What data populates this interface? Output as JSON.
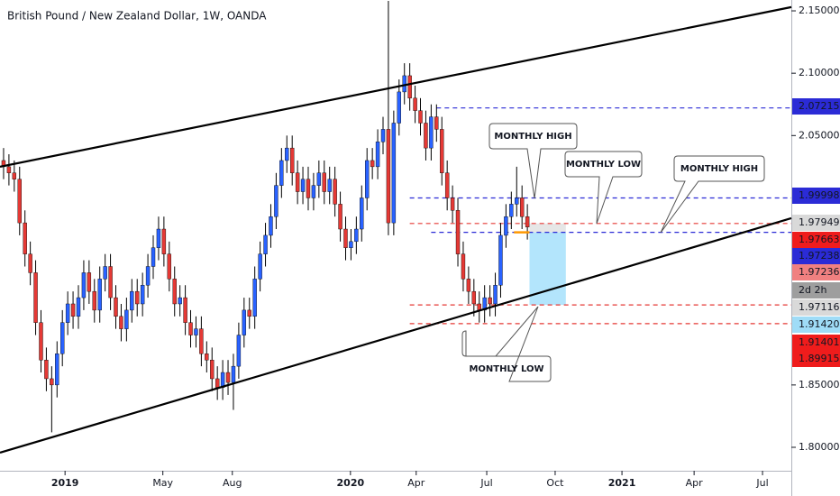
{
  "chart_data": {
    "type": "candlestick",
    "title": "British Pound / New Zealand Dollar, 1W, OANDA",
    "ylim": [
      1.7812,
      2.1587
    ],
    "xlim": [
      -0.67,
      147.39
    ],
    "yticks": [
      {
        "value": 2.15,
        "label": "2.15000"
      },
      {
        "value": 2.1,
        "label": "2.10000"
      },
      {
        "value": 2.05,
        "label": "2.05000"
      },
      {
        "value": 1.85,
        "label": "1.85000"
      },
      {
        "value": 1.8,
        "label": "1.80000"
      }
    ],
    "xticks": [
      {
        "value": 11.5,
        "label": "2019"
      },
      {
        "value": 29.8,
        "label": "May"
      },
      {
        "value": 42.8,
        "label": "Aug"
      },
      {
        "value": 64.9,
        "label": "2020"
      },
      {
        "value": 77.2,
        "label": "Apr"
      },
      {
        "value": 90.4,
        "label": "Jul"
      },
      {
        "value": 103.2,
        "label": "Oct"
      },
      {
        "value": 115.7,
        "label": "2021"
      },
      {
        "value": 129.2,
        "label": "Apr"
      },
      {
        "value": 142,
        "label": "Jul"
      }
    ],
    "series": [
      {
        "up_color": "#2962ff",
        "down_color": "#e53935",
        "wick_color": "#000000",
        "ohlc": [
          [
            2.03,
            2.04,
            2.015,
            2.025
          ],
          [
            2.025,
            2.035,
            2.01,
            2.02
          ],
          [
            2.02,
            2.03,
            2.005,
            2.015
          ],
          [
            2.015,
            2.025,
            1.97,
            1.98
          ],
          [
            1.98,
            1.99,
            1.945,
            1.955
          ],
          [
            1.955,
            1.965,
            1.93,
            1.94
          ],
          [
            1.94,
            1.95,
            1.89,
            1.9
          ],
          [
            1.9,
            1.91,
            1.86,
            1.87
          ],
          [
            1.87,
            1.88,
            1.845,
            1.855
          ],
          [
            1.855,
            1.865,
            1.812,
            1.85
          ],
          [
            1.85,
            1.885,
            1.84,
            1.875
          ],
          [
            1.875,
            1.91,
            1.865,
            1.9
          ],
          [
            1.9,
            1.925,
            1.89,
            1.915
          ],
          [
            1.915,
            1.925,
            1.895,
            1.905
          ],
          [
            1.905,
            1.93,
            1.895,
            1.92
          ],
          [
            1.92,
            1.95,
            1.91,
            1.94
          ],
          [
            1.94,
            1.95,
            1.915,
            1.925
          ],
          [
            1.925,
            1.935,
            1.9,
            1.91
          ],
          [
            1.91,
            1.945,
            1.9,
            1.935
          ],
          [
            1.935,
            1.955,
            1.925,
            1.945
          ],
          [
            1.945,
            1.955,
            1.91,
            1.92
          ],
          [
            1.92,
            1.93,
            1.895,
            1.905
          ],
          [
            1.905,
            1.915,
            1.885,
            1.895
          ],
          [
            1.895,
            1.92,
            1.885,
            1.91
          ],
          [
            1.91,
            1.935,
            1.9,
            1.925
          ],
          [
            1.925,
            1.935,
            1.905,
            1.915
          ],
          [
            1.915,
            1.94,
            1.905,
            1.93
          ],
          [
            1.93,
            1.955,
            1.92,
            1.945
          ],
          [
            1.945,
            1.97,
            1.935,
            1.96
          ],
          [
            1.96,
            1.985,
            1.95,
            1.975
          ],
          [
            1.975,
            1.985,
            1.945,
            1.955
          ],
          [
            1.955,
            1.965,
            1.925,
            1.935
          ],
          [
            1.935,
            1.945,
            1.905,
            1.915
          ],
          [
            1.915,
            1.93,
            1.905,
            1.92
          ],
          [
            1.92,
            1.93,
            1.89,
            1.9
          ],
          [
            1.9,
            1.91,
            1.88,
            1.89
          ],
          [
            1.89,
            1.905,
            1.88,
            1.895
          ],
          [
            1.895,
            1.905,
            1.865,
            1.875
          ],
          [
            1.875,
            1.885,
            1.86,
            1.87
          ],
          [
            1.87,
            1.88,
            1.845,
            1.855
          ],
          [
            1.855,
            1.865,
            1.838,
            1.848
          ],
          [
            1.848,
            1.87,
            1.838,
            1.86
          ],
          [
            1.86,
            1.87,
            1.842,
            1.852
          ],
          [
            1.852,
            1.875,
            1.83,
            1.865
          ],
          [
            1.865,
            1.9,
            1.855,
            1.89
          ],
          [
            1.89,
            1.92,
            1.88,
            1.91
          ],
          [
            1.91,
            1.92,
            1.895,
            1.905
          ],
          [
            1.905,
            1.945,
            1.895,
            1.935
          ],
          [
            1.935,
            1.965,
            1.925,
            1.955
          ],
          [
            1.955,
            1.98,
            1.945,
            1.97
          ],
          [
            1.97,
            1.995,
            1.96,
            1.985
          ],
          [
            1.985,
            2.02,
            1.975,
            2.01
          ],
          [
            2.01,
            2.04,
            2.0,
            2.03
          ],
          [
            2.03,
            2.05,
            2.02,
            2.04
          ],
          [
            2.04,
            2.05,
            2.01,
            2.02
          ],
          [
            2.02,
            2.03,
            1.995,
            2.005
          ],
          [
            2.005,
            2.025,
            1.995,
            2.015
          ],
          [
            2.015,
            2.025,
            1.99,
            2.0
          ],
          [
            2.0,
            2.02,
            1.99,
            2.01
          ],
          [
            2.01,
            2.03,
            2.0,
            2.02
          ],
          [
            2.02,
            2.03,
            1.995,
            2.005
          ],
          [
            2.005,
            2.025,
            1.995,
            2.015
          ],
          [
            2.015,
            2.025,
            1.985,
            1.995
          ],
          [
            1.995,
            2.005,
            1.965,
            1.975
          ],
          [
            1.975,
            1.985,
            1.95,
            1.96
          ],
          [
            1.96,
            1.975,
            1.95,
            1.965
          ],
          [
            1.965,
            1.985,
            1.955,
            1.975
          ],
          [
            1.975,
            2.01,
            1.965,
            2.0
          ],
          [
            2.0,
            2.04,
            1.99,
            2.03
          ],
          [
            2.03,
            2.04,
            2.015,
            2.025
          ],
          [
            2.025,
            2.055,
            2.015,
            2.045
          ],
          [
            2.045,
            2.065,
            2.035,
            2.055
          ],
          [
            2.055,
            2.158,
            1.97,
            1.98
          ],
          [
            1.98,
            2.07,
            1.97,
            2.06
          ],
          [
            2.06,
            2.095,
            2.05,
            2.085
          ],
          [
            2.085,
            2.108,
            2.075,
            2.098
          ],
          [
            2.098,
            2.108,
            2.07,
            2.08
          ],
          [
            2.08,
            2.09,
            2.06,
            2.07
          ],
          [
            2.07,
            2.08,
            2.05,
            2.06
          ],
          [
            2.06,
            2.07,
            2.03,
            2.04
          ],
          [
            2.04,
            2.075,
            2.03,
            2.065
          ],
          [
            2.065,
            2.075,
            2.045,
            2.055
          ],
          [
            2.055,
            2.065,
            2.01,
            2.02
          ],
          [
            2.02,
            2.03,
            1.99,
            2.0
          ],
          [
            2.0,
            2.01,
            1.98,
            1.99
          ],
          [
            1.99,
            2.0,
            1.945,
            1.955
          ],
          [
            1.955,
            1.965,
            1.925,
            1.935
          ],
          [
            1.935,
            1.945,
            1.915,
            1.925
          ],
          [
            1.925,
            1.935,
            1.905,
            1.915
          ],
          [
            1.915,
            1.925,
            1.9,
            1.91
          ],
          [
            1.91,
            1.93,
            1.9,
            1.92
          ],
          [
            1.92,
            1.93,
            1.905,
            1.915
          ],
          [
            1.915,
            1.94,
            1.905,
            1.93
          ],
          [
            1.93,
            1.98,
            1.92,
            1.97
          ],
          [
            1.97,
            1.995,
            1.96,
            1.985
          ],
          [
            1.985,
            2.005,
            1.975,
            1.995
          ],
          [
            1.995,
            2.025,
            1.985,
            2.0
          ],
          [
            2.0,
            2.01,
            1.975,
            1.985
          ],
          [
            1.985,
            1.995,
            1.9666,
            1.9766
          ]
        ]
      }
    ],
    "trendlines": [
      {
        "x": [
          -0.67,
          147.39
        ],
        "y": [
          2.025,
          2.153
        ],
        "color": "#000000"
      },
      {
        "x": [
          -0.67,
          147.39
        ],
        "y": [
          1.7957,
          1.9837
        ],
        "color": "#000000"
      }
    ],
    "levels": [
      {
        "value": 2.07215,
        "from": 81,
        "color": "#2b2bd6"
      },
      {
        "value": 1.99998,
        "from": 76,
        "color": "#2b2bd6"
      },
      {
        "value": 1.97949,
        "from": 76,
        "color": "#e53935"
      },
      {
        "value": 1.97238,
        "from": 80,
        "color": "#2b2bd6"
      },
      {
        "value": 1.9142,
        "from": 76,
        "color": "#e53935"
      },
      {
        "value": 1.89915,
        "from": 76,
        "color": "#e53935"
      }
    ],
    "position": {
      "x": [
        98.4,
        105.2
      ],
      "entry": 1.97238,
      "stop": 1.97949,
      "target": 1.9142
    },
    "badges": [
      {
        "label": "2.07215",
        "bg": "#2b2bd6",
        "fg": "#ffffff"
      },
      {
        "label": "1.99998",
        "bg": "#2b2bd6",
        "fg": "#ffffff"
      },
      {
        "label": "1.97949",
        "bg": "#d9d9d9",
        "fg": "#000000"
      },
      {
        "label": "1.97663",
        "bg": "#ef1c1c",
        "fg": "#ffffff"
      },
      {
        "label": "1.97238",
        "bg": "#2b2bd6",
        "fg": "#ffffff"
      },
      {
        "label": "1.97236",
        "bg": "#f08080",
        "fg": "#ffffff"
      },
      {
        "label": "2d 2h",
        "bg": "#9e9e9e",
        "fg": "#ffffff"
      },
      {
        "label": "1.97116",
        "bg": "#d9d9d9",
        "fg": "#000000"
      },
      {
        "label": "1.91420",
        "bg": "#9fdcf7",
        "fg": "#000000"
      },
      {
        "label": "1.91401",
        "bg": "#ef1c1c",
        "fg": "#ffffff"
      },
      {
        "label": "1.89915",
        "bg": "#ef1c1c",
        "fg": "#ffffff"
      }
    ],
    "annotations": [
      {
        "text": "MONTHLY HIGH",
        "color": "#1e22d8"
      },
      {
        "text": "MONTHLY LOW",
        "color": "#e01b1b"
      },
      {
        "text": "MONTHLY HIGH",
        "color": "#1e22d8"
      },
      {
        "text": "MONTHLY LOW",
        "color": "#e01b1b"
      }
    ]
  }
}
